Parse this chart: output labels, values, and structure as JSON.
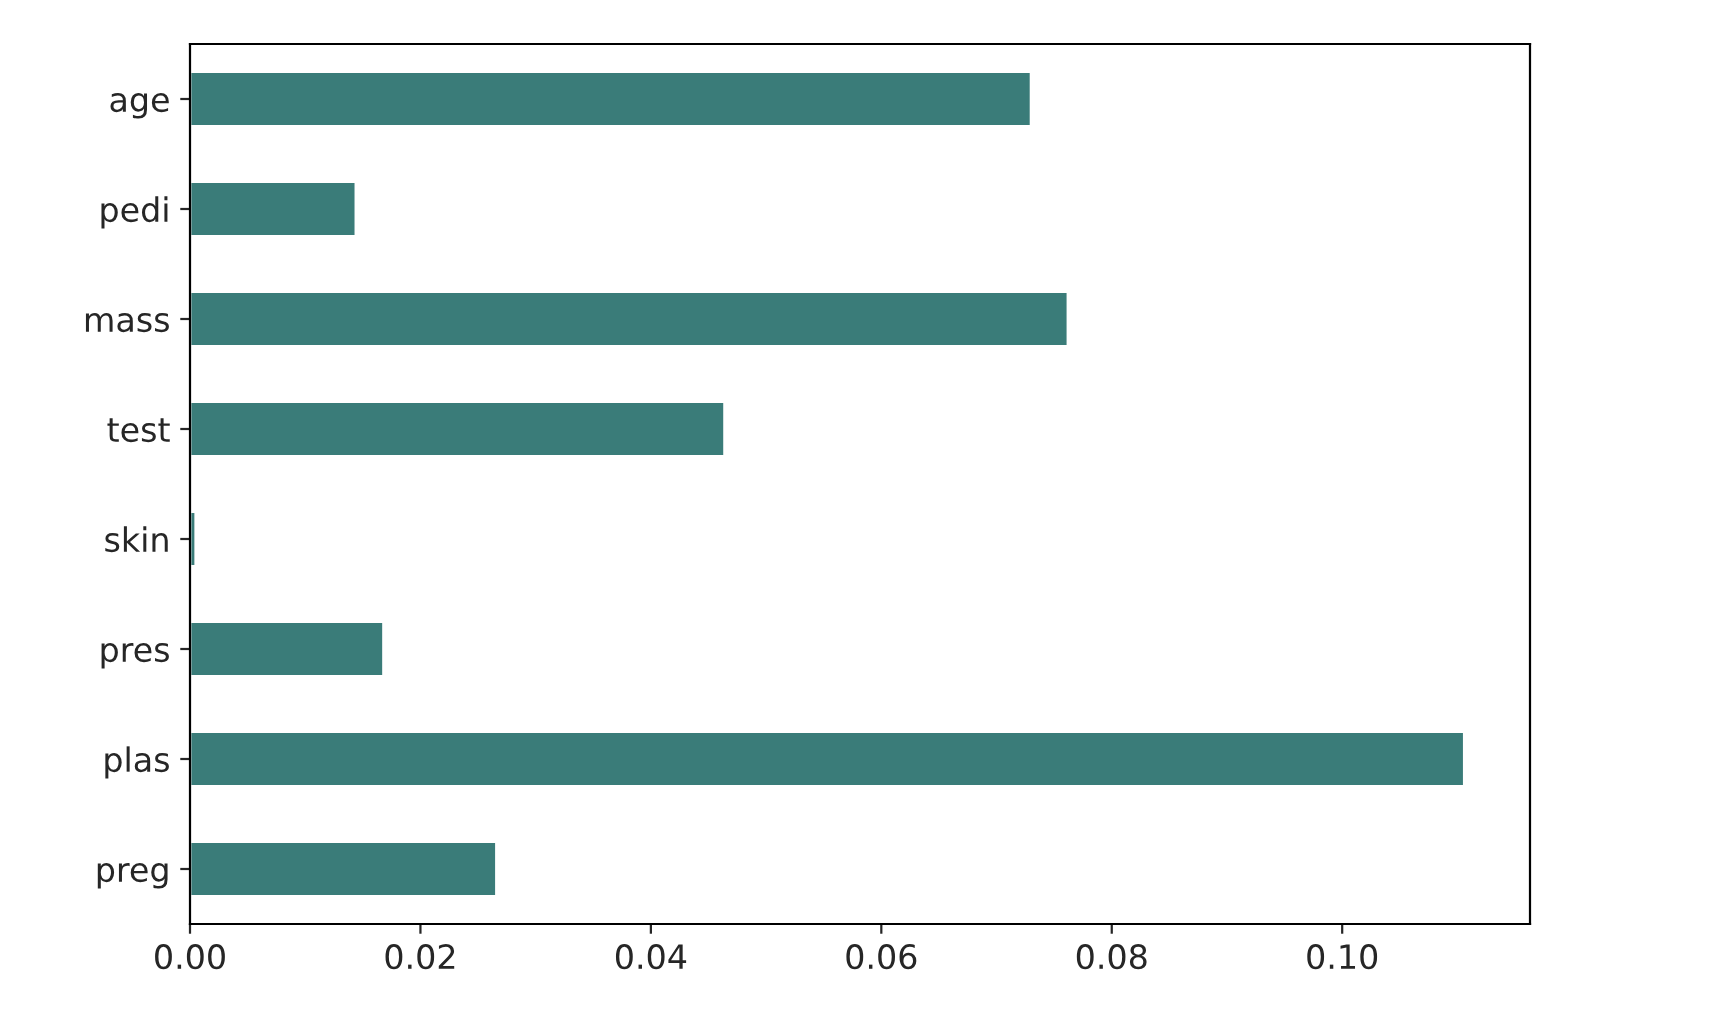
{
  "chart_data": {
    "type": "bar",
    "orientation": "horizontal",
    "categories": [
      "age",
      "pedi",
      "mass",
      "test",
      "skin",
      "pres",
      "plas",
      "preg"
    ],
    "values": [
      0.073,
      0.0144,
      0.0762,
      0.0464,
      0.0005,
      0.0168,
      0.1106,
      0.0266
    ],
    "color": "#3a7c79",
    "xlim": [
      0,
      0.1163
    ],
    "xticks": [
      {
        "value": 0,
        "label": "0.00"
      },
      {
        "value": 0.02,
        "label": "0.02"
      },
      {
        "value": 0.04,
        "label": "0.04"
      },
      {
        "value": 0.06,
        "label": "0.06"
      },
      {
        "value": 0.08,
        "label": "0.08"
      },
      {
        "value": 0.1,
        "label": "0.10"
      }
    ],
    "grid": false,
    "legend": false
  }
}
